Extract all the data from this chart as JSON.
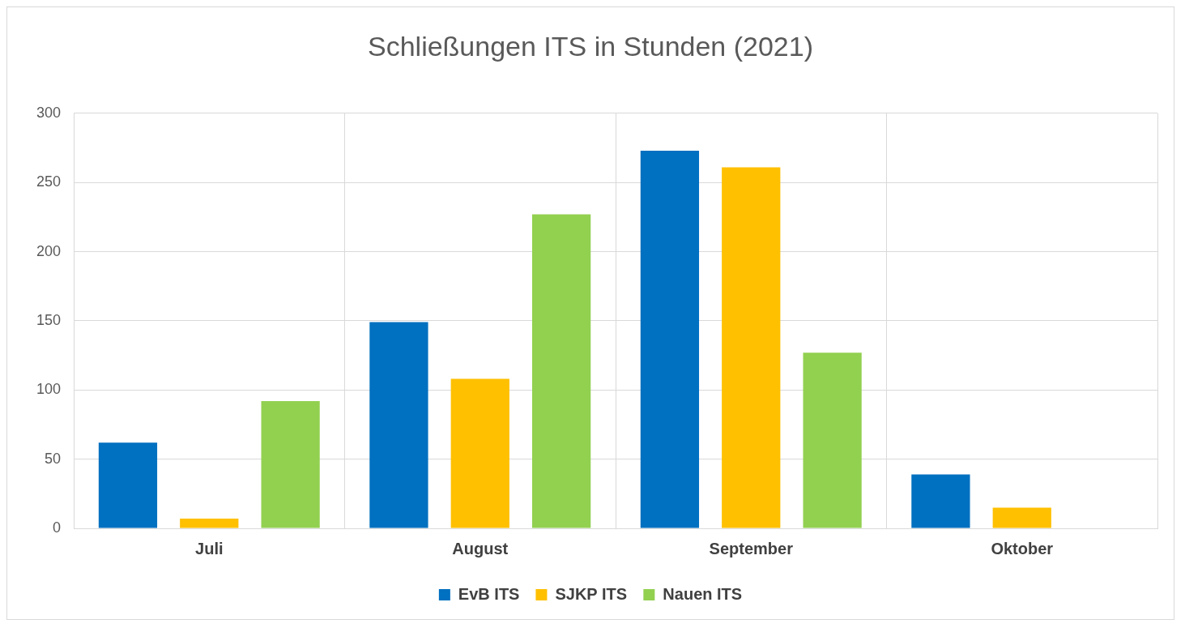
{
  "chart_data": {
    "type": "bar",
    "title": "Schließungen ITS in Stunden (2021)",
    "categories": [
      "Juli",
      "August",
      "September",
      "Oktober"
    ],
    "series": [
      {
        "name": "EvB ITS",
        "color": "#0070c0",
        "values": [
          62,
          149,
          273,
          39
        ]
      },
      {
        "name": "SJKP ITS",
        "color": "#ffc000",
        "values": [
          7,
          108,
          261,
          15
        ]
      },
      {
        "name": "Nauen ITS",
        "color": "#92d050",
        "values": [
          92,
          227,
          127,
          null
        ]
      }
    ],
    "ylim": [
      0,
      300
    ],
    "yticks": [
      0,
      50,
      100,
      150,
      200,
      250,
      300
    ],
    "grid": true,
    "legend": "bottom"
  }
}
